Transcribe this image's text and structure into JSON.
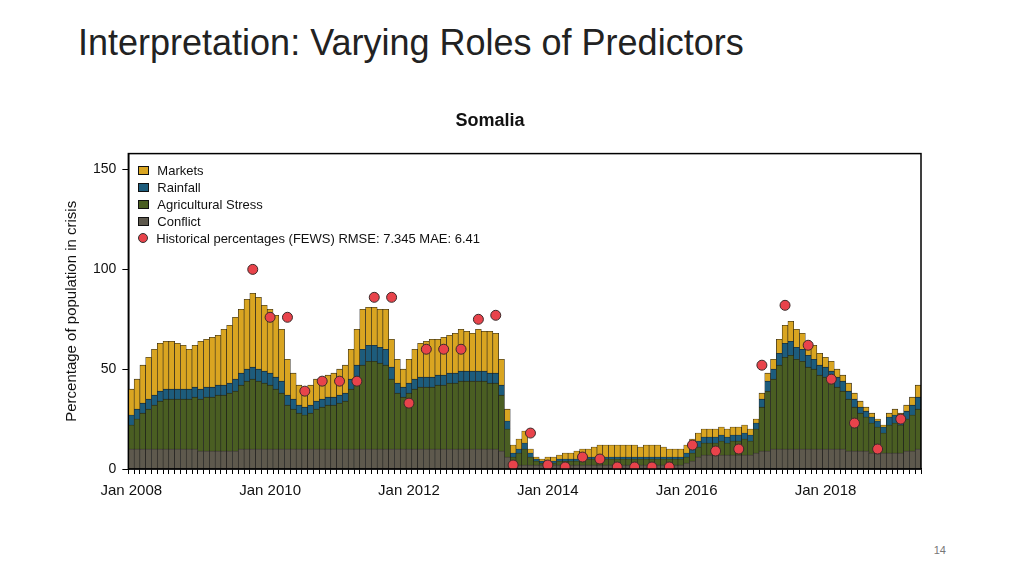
{
  "slide_title": "Interpretation: Varying Roles of Predictors",
  "page_number": "14",
  "chart_data": {
    "type": "bar",
    "title": "Somalia",
    "y_label": "Percentage of population in crisis",
    "stacked": true,
    "grid": false,
    "legend": "upper left",
    "ylim": [
      0,
      158
    ],
    "yticks": [
      0,
      50,
      100,
      150
    ],
    "categories": [
      "Jan 2008",
      null,
      null,
      null,
      null,
      null,
      null,
      null,
      null,
      null,
      null,
      null,
      null,
      null,
      null,
      null,
      null,
      null,
      null,
      null,
      null,
      null,
      null,
      null,
      "Jan 2010",
      null,
      null,
      null,
      null,
      null,
      null,
      null,
      null,
      null,
      null,
      null,
      null,
      null,
      null,
      null,
      null,
      null,
      null,
      null,
      null,
      null,
      null,
      null,
      "Jan 2012",
      null,
      null,
      null,
      null,
      null,
      null,
      null,
      null,
      null,
      null,
      null,
      null,
      null,
      null,
      null,
      null,
      null,
      null,
      null,
      null,
      null,
      null,
      null,
      "Jan 2014",
      null,
      null,
      null,
      null,
      null,
      null,
      null,
      null,
      null,
      null,
      null,
      null,
      null,
      null,
      null,
      null,
      null,
      null,
      null,
      null,
      null,
      null,
      null,
      "Jan 2016",
      null,
      null,
      null,
      null,
      null,
      null,
      null,
      null,
      null,
      null,
      null,
      null,
      null,
      null,
      null,
      null,
      null,
      null,
      null,
      null,
      null,
      null,
      null,
      "Jan 2018",
      null,
      null,
      null,
      null,
      null,
      null,
      null,
      null,
      null,
      null,
      null,
      null,
      null,
      null,
      null,
      null
    ],
    "series": [
      {
        "name": "Markets",
        "color": "#d9a521",
        "values": [
          13,
          15,
          19,
          21,
          23,
          24,
          24,
          24,
          23,
          22,
          20,
          21,
          24,
          24,
          25,
          25,
          28,
          29,
          31,
          32,
          35,
          37,
          36,
          33,
          32,
          31,
          26,
          18,
          13,
          10,
          9,
          10,
          11,
          11,
          11,
          12,
          13,
          14,
          15,
          18,
          20,
          19,
          19,
          19,
          20,
          14,
          12,
          9,
          12,
          15,
          17,
          18,
          19,
          18,
          19,
          19,
          20,
          21,
          20,
          19,
          21,
          20,
          21,
          20,
          13,
          6,
          4,
          5,
          6,
          2,
          1,
          1,
          2,
          2,
          2,
          3,
          3,
          4,
          4,
          4,
          5,
          6,
          6,
          6,
          6,
          6,
          6,
          6,
          5,
          6,
          6,
          6,
          5,
          4,
          4,
          4,
          4,
          4,
          4,
          4,
          4,
          4,
          4,
          4,
          4,
          4,
          4,
          3,
          2,
          3,
          4,
          5,
          7,
          9,
          10,
          9,
          8,
          7,
          7,
          6,
          5,
          5,
          4,
          3,
          4,
          3,
          3,
          2,
          2,
          1,
          1,
          2,
          3,
          2,
          3,
          4,
          6
        ]
      },
      {
        "name": "Rainfall",
        "color": "#1d5c7c",
        "values": [
          5,
          5,
          5,
          5,
          5,
          5,
          5,
          5,
          5,
          5,
          5,
          5,
          5,
          5,
          5,
          5,
          5,
          5,
          6,
          6,
          6,
          6,
          6,
          6,
          6,
          6,
          6,
          5,
          5,
          4,
          4,
          4,
          4,
          4,
          4,
          4,
          4,
          4,
          5,
          6,
          8,
          8,
          8,
          8,
          8,
          6,
          5,
          5,
          5,
          5,
          5,
          5,
          5,
          5,
          5,
          5,
          5,
          5,
          5,
          5,
          5,
          5,
          5,
          5,
          5,
          4,
          2,
          2,
          3,
          2,
          1,
          1,
          1,
          1,
          1,
          1,
          1,
          1,
          1,
          1,
          1,
          1,
          1,
          1,
          1,
          1,
          1,
          1,
          1,
          1,
          1,
          1,
          1,
          1,
          1,
          1,
          2,
          3,
          3,
          3,
          3,
          3,
          3,
          3,
          3,
          3,
          3,
          3,
          3,
          4,
          5,
          5,
          6,
          7,
          7,
          6,
          6,
          6,
          5,
          5,
          5,
          5,
          5,
          5,
          4,
          4,
          3,
          3,
          3,
          3,
          3,
          4,
          4,
          4,
          4,
          5,
          6
        ]
      },
      {
        "name": "Agricultural Stress",
        "color": "#4a5e22",
        "values": [
          12,
          15,
          18,
          20,
          22,
          24,
          25,
          25,
          25,
          25,
          25,
          26,
          26,
          27,
          27,
          28,
          28,
          29,
          30,
          32,
          34,
          35,
          34,
          33,
          32,
          30,
          28,
          22,
          20,
          18,
          17,
          18,
          20,
          21,
          22,
          22,
          23,
          24,
          30,
          36,
          42,
          44,
          44,
          43,
          42,
          35,
          28,
          26,
          28,
          30,
          31,
          31,
          31,
          32,
          32,
          33,
          33,
          34,
          34,
          34,
          34,
          34,
          33,
          33,
          28,
          14,
          4,
          6,
          8,
          4,
          2,
          1,
          1,
          1,
          2,
          2,
          2,
          2,
          3,
          3,
          3,
          3,
          3,
          3,
          3,
          3,
          3,
          3,
          3,
          3,
          3,
          3,
          3,
          3,
          3,
          3,
          3,
          4,
          5,
          6,
          6,
          6,
          7,
          6,
          7,
          7,
          8,
          7,
          12,
          22,
          30,
          35,
          42,
          46,
          47,
          45,
          44,
          41,
          40,
          37,
          36,
          34,
          31,
          29,
          26,
          22,
          19,
          17,
          15,
          13,
          10,
          14,
          15,
          14,
          16,
          18,
          20
        ]
      },
      {
        "name": "Conflict",
        "color": "#5e594d",
        "values": [
          10,
          10,
          10,
          10,
          10,
          10,
          10,
          10,
          10,
          10,
          10,
          10,
          9,
          9,
          9,
          9,
          9,
          9,
          9,
          10,
          10,
          10,
          10,
          10,
          10,
          10,
          10,
          10,
          10,
          10,
          10,
          10,
          10,
          10,
          10,
          10,
          10,
          10,
          10,
          10,
          10,
          10,
          10,
          10,
          10,
          10,
          10,
          10,
          10,
          10,
          10,
          10,
          10,
          10,
          10,
          10,
          10,
          10,
          10,
          10,
          10,
          10,
          10,
          10,
          9,
          6,
          2,
          2,
          2,
          2,
          2,
          2,
          2,
          2,
          2,
          2,
          2,
          2,
          2,
          2,
          2,
          2,
          2,
          2,
          2,
          2,
          2,
          2,
          2,
          2,
          2,
          2,
          2,
          2,
          2,
          2,
          3,
          4,
          6,
          7,
          7,
          7,
          7,
          7,
          7,
          7,
          7,
          7,
          8,
          9,
          9,
          10,
          10,
          10,
          10,
          10,
          10,
          10,
          10,
          10,
          10,
          10,
          10,
          10,
          9,
          9,
          9,
          9,
          8,
          8,
          8,
          8,
          8,
          8,
          9,
          9,
          10
        ]
      },
      {
        "name": "Historical percentages (FEWS) RMSE: 7.345 MAE: 6.41",
        "type": "scatter",
        "marker": "circle",
        "color": "#e8434b",
        "values": [
          null,
          null,
          null,
          null,
          null,
          null,
          null,
          null,
          null,
          null,
          null,
          null,
          null,
          null,
          null,
          null,
          null,
          null,
          null,
          null,
          null,
          100,
          null,
          null,
          76,
          null,
          null,
          76,
          null,
          null,
          39,
          null,
          null,
          44,
          null,
          null,
          44,
          null,
          null,
          44,
          null,
          null,
          86,
          null,
          null,
          86,
          null,
          null,
          33,
          null,
          null,
          60,
          null,
          null,
          60,
          null,
          null,
          60,
          null,
          null,
          75,
          null,
          null,
          77,
          null,
          null,
          2,
          null,
          null,
          18,
          null,
          null,
          2,
          null,
          null,
          1,
          null,
          null,
          6,
          null,
          null,
          5,
          null,
          null,
          1,
          null,
          null,
          1,
          null,
          null,
          1,
          null,
          null,
          1,
          null,
          null,
          null,
          12,
          null,
          null,
          null,
          9,
          null,
          null,
          null,
          10,
          null,
          null,
          null,
          52,
          null,
          null,
          null,
          82,
          null,
          null,
          null,
          62,
          null,
          null,
          null,
          45,
          null,
          null,
          null,
          23,
          null,
          null,
          null,
          10,
          null,
          null,
          null,
          25,
          null,
          null,
          null
        ]
      }
    ]
  }
}
